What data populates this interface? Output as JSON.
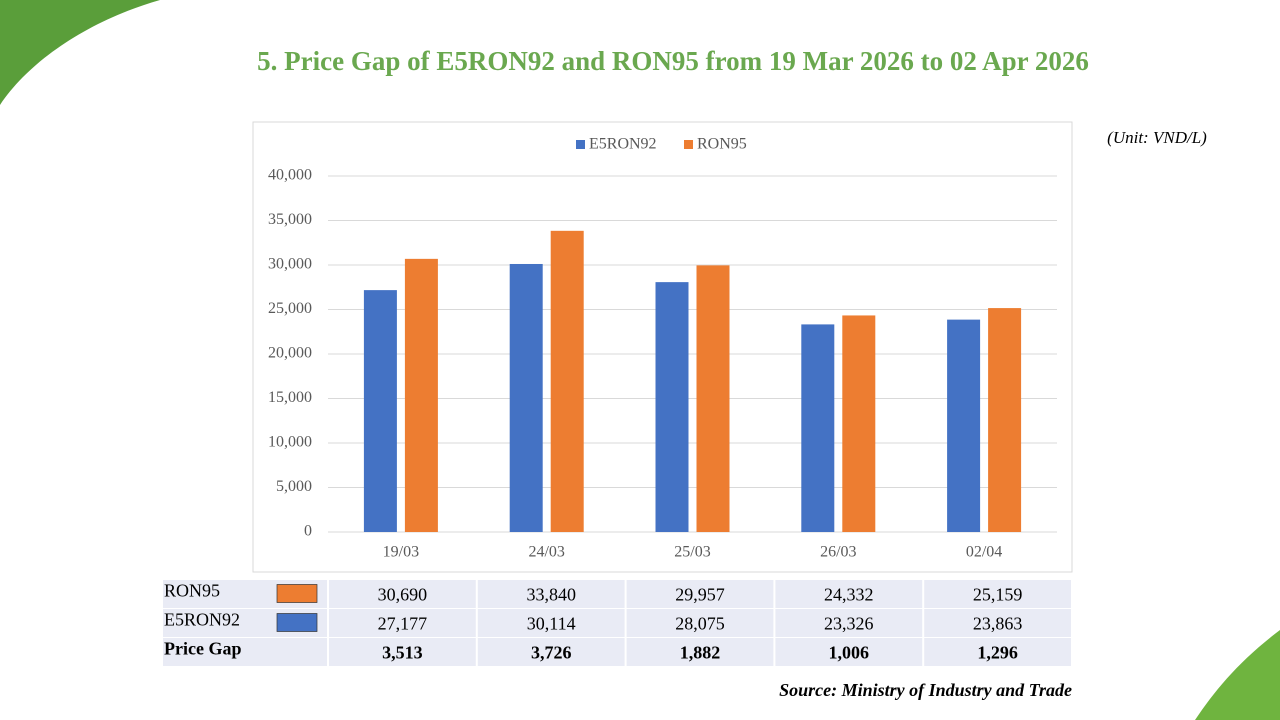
{
  "chart_data": {
    "type": "bar",
    "title": "5. Price Gap of E5RON92 and RON95 from 19 Mar 2026 to 02 Apr 2026",
    "unit": "(Unit: VND/L)",
    "source": "Source: Ministry of Industry and Trade",
    "categories": [
      "19/03",
      "24/03",
      "25/03",
      "26/03",
      "02/04"
    ],
    "series": [
      {
        "name": "E5RON92",
        "color": "#4472c4",
        "values": [
          27177,
          30114,
          28075,
          23326,
          23863
        ],
        "value_labels": [
          "27,177",
          "30,114",
          "28,075",
          "23,326",
          "23,863"
        ]
      },
      {
        "name": "RON95",
        "color": "#ed7d31",
        "values": [
          30690,
          33840,
          29957,
          24332,
          25159
        ],
        "value_labels": [
          "30,690",
          "33,840",
          "29,957",
          "24,332",
          "25,159"
        ]
      }
    ],
    "price_gap": {
      "name": "Price Gap",
      "values": [
        3513,
        3726,
        1882,
        1006,
        1296
      ],
      "value_labels": [
        "3,513",
        "3,726",
        "1,882",
        "1,006",
        "1,296"
      ]
    },
    "ylim": [
      0,
      40000
    ],
    "yticks": [
      0,
      {
        "value": 5000,
        "label": "5,000"
      },
      {
        "value": 10000,
        "label": "10,000"
      },
      {
        "value": 15000,
        "label": "15,000"
      },
      {
        "value": 20000,
        "label": "20,000"
      },
      {
        "value": 25000,
        "label": "25,000"
      },
      {
        "value": 30000,
        "label": "30,000"
      },
      {
        "value": 35000,
        "label": "35,000"
      },
      {
        "value": 40000,
        "label": "40,000"
      }
    ],
    "grid": true,
    "legend": "top"
  }
}
